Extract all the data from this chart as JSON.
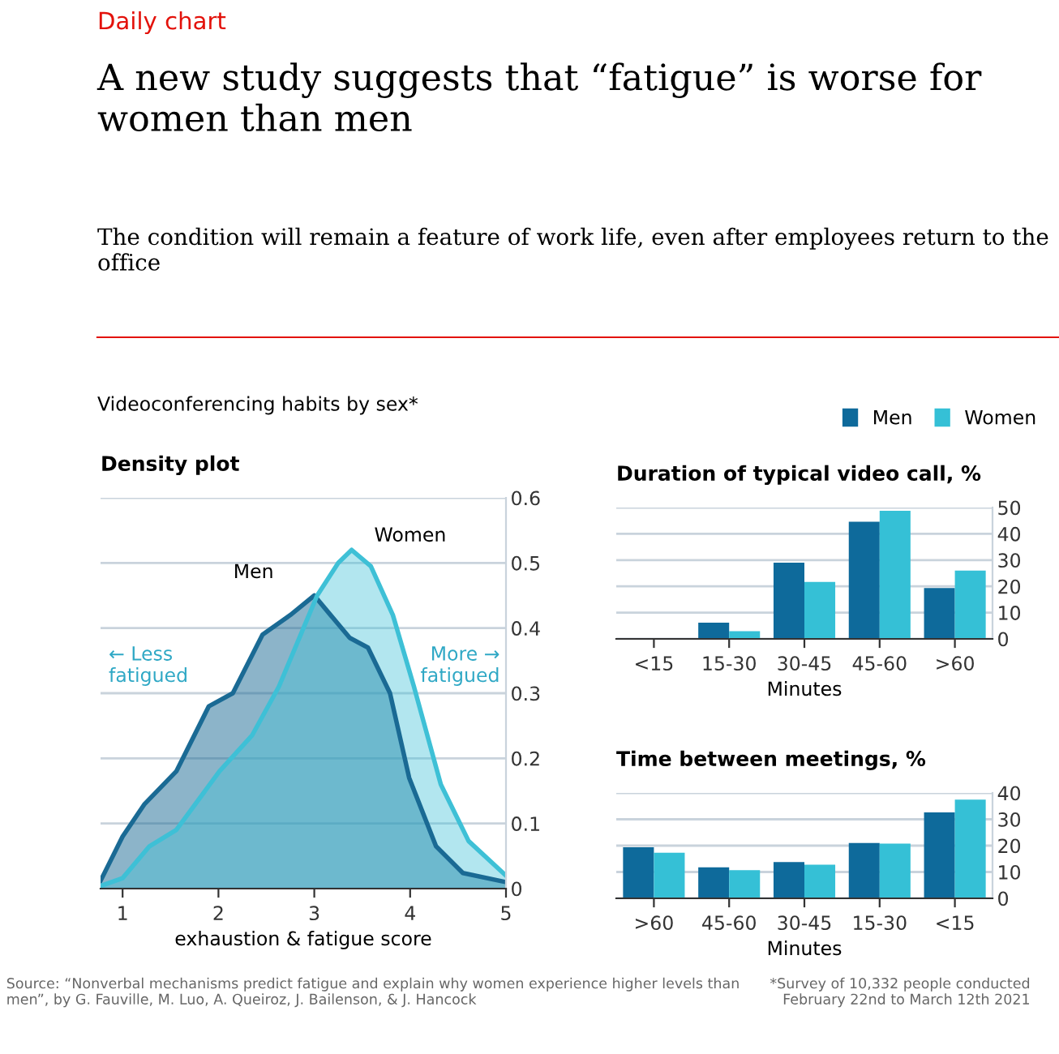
{
  "chart_data": [
    {
      "type": "area",
      "title": "Density plot",
      "xlabel": "exhaustion & fatigue score",
      "xlim": [
        0.77,
        5
      ],
      "xticks": [
        1,
        2,
        3,
        4,
        5
      ],
      "ylim": [
        0,
        0.6
      ],
      "yticks": [
        0,
        0.1,
        0.2,
        0.3,
        0.4,
        0.5,
        0.6
      ],
      "grid": "y",
      "series": [
        {
          "name": "Men",
          "color": "#1a6a94",
          "x": [
            0.77,
            1.0,
            1.23,
            1.56,
            1.9,
            2.15,
            2.46,
            2.75,
            3.0,
            3.17,
            3.37,
            3.56,
            3.79,
            3.99,
            4.27,
            4.55,
            5.0
          ],
          "values": [
            0.012,
            0.08,
            0.13,
            0.18,
            0.28,
            0.3,
            0.39,
            0.42,
            0.45,
            0.42,
            0.385,
            0.37,
            0.3,
            0.17,
            0.065,
            0.024,
            0.01
          ]
        },
        {
          "name": "Women",
          "color": "#3ec0d6",
          "x": [
            0.77,
            1.0,
            1.28,
            1.56,
            2.01,
            2.35,
            2.63,
            3.03,
            3.25,
            3.39,
            3.59,
            3.82,
            4.04,
            4.32,
            4.61,
            5.0
          ],
          "values": [
            0.004,
            0.016,
            0.065,
            0.09,
            0.18,
            0.235,
            0.31,
            0.45,
            0.5,
            0.52,
            0.495,
            0.42,
            0.31,
            0.16,
            0.073,
            0.02
          ]
        }
      ],
      "annotations": [
        "Daily chart",
        "A new study suggests that “fatigue” is worse for women than men",
        "The condition will remain a feature of work life, even after employees return to the office",
        "Videoconferencing habits by sex*",
        "← Less\nfatigued",
        "More →\nfatigued",
        "Source: “Nonverbal mechanisms predict fatigue and explain why women experience higher levels than men”, by G. Fauville, M. Luo, A. Queiroz, J. Bailenson, & J. Hancock"
      ]
    },
    {
      "type": "bar",
      "title": "Duration of typical video call, %",
      "xlabel": "Minutes",
      "categories": [
        "<15",
        "15-30",
        "30-45",
        "45-60",
        ">60"
      ],
      "ylim": [
        0,
        50
      ],
      "yticks": [
        0,
        10,
        20,
        30,
        40,
        50
      ],
      "grid": "y",
      "legend": "top right",
      "series": [
        {
          "name": "Men",
          "color": "#0e6a9b",
          "values": [
            0,
            6.2,
            29,
            44.6,
            19.4
          ]
        },
        {
          "name": "Women",
          "color": "#35c0d6",
          "values": [
            0,
            2.9,
            21.7,
            48.8,
            26
          ]
        }
      ]
    },
    {
      "type": "bar",
      "title": "Time between meetings, %",
      "xlabel": "Minutes",
      "categories": [
        ">60",
        "45-60",
        "30-45",
        "15-30",
        "<15"
      ],
      "ylim": [
        0,
        40
      ],
      "yticks": [
        0,
        10,
        20,
        30,
        40
      ],
      "grid": "y",
      "series": [
        {
          "color": "#0e6a9b",
          "values": [
            19.4,
            11.8,
            13.8,
            21,
            32.6
          ]
        },
        {
          "color": "#35c0d6",
          "values": [
            17.3,
            10.7,
            12.8,
            20.8,
            37.5
          ]
        }
      ],
      "annotations": [
        "*Survey of 10,332 people conducted February 22nd to March 12th 2021"
      ]
    }
  ]
}
